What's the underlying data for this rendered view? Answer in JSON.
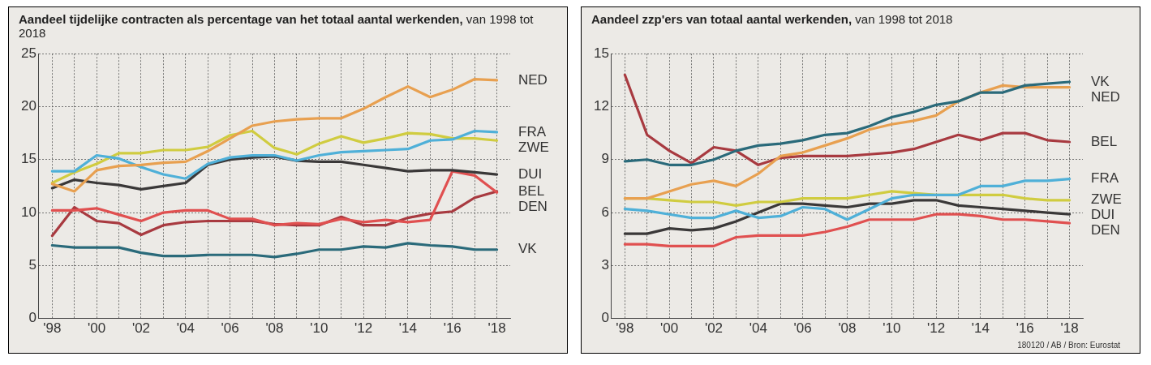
{
  "chart_data": [
    {
      "type": "line",
      "title": "Aandeel tijdelijke contracten als percentage van het totaal aantal werkenden,",
      "subtitle": "van 1998 tot 2018",
      "x": [
        1998,
        1999,
        2000,
        2001,
        2002,
        2003,
        2004,
        2005,
        2006,
        2007,
        2008,
        2009,
        2010,
        2011,
        2012,
        2013,
        2014,
        2015,
        2016,
        2017,
        2018
      ],
      "series": [
        {
          "name": "NED",
          "color": "#e8a050",
          "values": [
            12.7,
            12.0,
            14.0,
            14.4,
            14.5,
            14.7,
            14.8,
            15.8,
            17.0,
            18.2,
            18.6,
            18.8,
            18.9,
            18.9,
            19.8,
            20.9,
            21.9,
            20.9,
            21.6,
            22.6,
            22.5
          ]
        },
        {
          "name": "FRA",
          "color": "#4fb0d8",
          "values": [
            13.9,
            13.9,
            15.4,
            15.1,
            14.3,
            13.6,
            13.2,
            14.6,
            15.2,
            15.4,
            15.4,
            14.9,
            15.4,
            15.7,
            15.8,
            15.9,
            16.0,
            16.8,
            16.9,
            17.7,
            17.6
          ]
        },
        {
          "name": "ZWE",
          "color": "#d0cc40",
          "values": [
            12.8,
            13.8,
            14.6,
            15.6,
            15.6,
            15.9,
            15.9,
            16.2,
            17.3,
            17.7,
            16.1,
            15.5,
            16.5,
            17.2,
            16.6,
            17.0,
            17.5,
            17.4,
            17.0,
            17.0,
            16.8
          ]
        },
        {
          "name": "DUI",
          "color": "#3a3838",
          "values": [
            12.3,
            13.1,
            12.8,
            12.6,
            12.2,
            12.5,
            12.8,
            14.5,
            15.0,
            15.2,
            15.3,
            14.9,
            14.8,
            14.8,
            14.5,
            14.2,
            13.9,
            14.0,
            14.0,
            13.8,
            13.6
          ]
        },
        {
          "name": "DEN",
          "color": "#e05050",
          "values": [
            10.2,
            10.2,
            10.4,
            9.8,
            9.2,
            10.0,
            10.2,
            10.2,
            9.4,
            9.4,
            8.8,
            9.0,
            8.9,
            9.4,
            9.1,
            9.3,
            9.1,
            9.3,
            13.9,
            13.5,
            11.9
          ]
        },
        {
          "name": "BEL",
          "color": "#a83a40",
          "values": [
            7.8,
            10.5,
            9.2,
            9.0,
            7.9,
            8.8,
            9.1,
            9.2,
            9.2,
            9.2,
            8.9,
            8.8,
            8.8,
            9.6,
            8.8,
            8.8,
            9.5,
            9.9,
            10.1,
            11.4,
            12.0
          ]
        },
        {
          "name": "VK",
          "color": "#2a6a7a",
          "values": [
            6.9,
            6.7,
            6.7,
            6.7,
            6.2,
            5.9,
            5.9,
            6.0,
            6.0,
            6.0,
            5.8,
            6.1,
            6.5,
            6.5,
            6.8,
            6.7,
            7.1,
            6.9,
            6.8,
            6.5,
            6.5
          ]
        }
      ],
      "xlim": [
        1997.4,
        2018.6
      ],
      "xticks": [
        {
          "value": 1998,
          "label": "'98"
        },
        {
          "value": 1999,
          "label": null
        },
        {
          "value": 2000,
          "label": "'00"
        },
        {
          "value": 2001,
          "label": null
        },
        {
          "value": 2002,
          "label": "'02"
        },
        {
          "value": 2003,
          "label": null
        },
        {
          "value": 2004,
          "label": "'04"
        },
        {
          "value": 2005,
          "label": null
        },
        {
          "value": 2006,
          "label": "'06"
        },
        {
          "value": 2007,
          "label": null
        },
        {
          "value": 2008,
          "label": "'08"
        },
        {
          "value": 2009,
          "label": null
        },
        {
          "value": 2010,
          "label": "'10"
        },
        {
          "value": 2011,
          "label": null
        },
        {
          "value": 2012,
          "label": "'12"
        },
        {
          "value": 2013,
          "label": null
        },
        {
          "value": 2014,
          "label": "'14"
        },
        {
          "value": 2015,
          "label": null
        },
        {
          "value": 2016,
          "label": "'16"
        },
        {
          "value": 2017,
          "label": null
        },
        {
          "value": 2018,
          "label": "'18"
        }
      ],
      "ylim": [
        0,
        25
      ],
      "yticks": [
        0,
        5,
        10,
        15,
        20,
        25
      ],
      "grid": true,
      "legend": false,
      "marker": "none",
      "line_style": "solid"
    },
    {
      "type": "line",
      "title": "Aandeel zzp'ers van totaal aantal werkenden,",
      "subtitle": "van 1998 tot 2018",
      "x": [
        1998,
        1999,
        2000,
        2001,
        2002,
        2003,
        2004,
        2005,
        2006,
        2007,
        2008,
        2009,
        2010,
        2011,
        2012,
        2013,
        2014,
        2015,
        2016,
        2017,
        2018
      ],
      "series": [
        {
          "name": "VK",
          "color": "#2a6a7a",
          "values": [
            8.9,
            9.0,
            8.7,
            8.7,
            9.0,
            9.5,
            9.8,
            9.9,
            10.1,
            10.4,
            10.5,
            10.9,
            11.4,
            11.7,
            12.1,
            12.3,
            12.8,
            12.8,
            13.2,
            13.3,
            13.4
          ]
        },
        {
          "name": "NED",
          "color": "#e8a050",
          "values": [
            6.8,
            6.8,
            7.2,
            7.6,
            7.8,
            7.5,
            8.2,
            9.2,
            9.4,
            9.8,
            10.2,
            10.7,
            11.0,
            11.2,
            11.5,
            12.3,
            12.8,
            13.2,
            13.1,
            13.1,
            13.1
          ]
        },
        {
          "name": "BEL",
          "color": "#a83a40",
          "values": [
            13.8,
            10.4,
            9.5,
            8.8,
            9.7,
            9.5,
            8.7,
            9.1,
            9.2,
            9.2,
            9.2,
            9.3,
            9.4,
            9.6,
            10.0,
            10.4,
            10.1,
            10.5,
            10.5,
            10.1,
            10.0
          ]
        },
        {
          "name": "FRA",
          "color": "#4fb0d8",
          "values": [
            6.2,
            6.1,
            5.9,
            5.7,
            5.7,
            6.1,
            5.7,
            5.8,
            6.3,
            6.2,
            5.6,
            6.2,
            6.8,
            7.0,
            7.0,
            7.0,
            7.5,
            7.5,
            7.8,
            7.8,
            7.9
          ]
        },
        {
          "name": "ZWE",
          "color": "#d0cc40",
          "values": [
            6.8,
            6.8,
            6.7,
            6.6,
            6.6,
            6.4,
            6.6,
            6.6,
            6.8,
            6.8,
            6.8,
            7.0,
            7.2,
            7.1,
            7.0,
            7.0,
            7.0,
            7.0,
            6.8,
            6.7,
            6.7
          ]
        },
        {
          "name": "DUI",
          "color": "#3a3838",
          "values": [
            4.8,
            4.8,
            5.1,
            5.0,
            5.1,
            5.5,
            6.0,
            6.5,
            6.5,
            6.4,
            6.3,
            6.5,
            6.5,
            6.7,
            6.7,
            6.4,
            6.3,
            6.2,
            6.1,
            6.0,
            5.9
          ]
        },
        {
          "name": "DEN",
          "color": "#e05050",
          "values": [
            4.2,
            4.2,
            4.1,
            4.1,
            4.1,
            4.6,
            4.7,
            4.7,
            4.7,
            4.9,
            5.2,
            5.6,
            5.6,
            5.6,
            5.9,
            5.9,
            5.8,
            5.6,
            5.6,
            5.5,
            5.4
          ]
        }
      ],
      "xlim": [
        1997.4,
        2018.6
      ],
      "xticks": [
        {
          "value": 1998,
          "label": "'98"
        },
        {
          "value": 1999,
          "label": null
        },
        {
          "value": 2000,
          "label": "'00"
        },
        {
          "value": 2001,
          "label": null
        },
        {
          "value": 2002,
          "label": "'02"
        },
        {
          "value": 2003,
          "label": null
        },
        {
          "value": 2004,
          "label": "'04"
        },
        {
          "value": 2005,
          "label": null
        },
        {
          "value": 2006,
          "label": "'06"
        },
        {
          "value": 2007,
          "label": null
        },
        {
          "value": 2008,
          "label": "'08"
        },
        {
          "value": 2009,
          "label": null
        },
        {
          "value": 2010,
          "label": "'10"
        },
        {
          "value": 2011,
          "label": null
        },
        {
          "value": 2012,
          "label": "'12"
        },
        {
          "value": 2013,
          "label": null
        },
        {
          "value": 2014,
          "label": "'14"
        },
        {
          "value": 2015,
          "label": null
        },
        {
          "value": 2016,
          "label": "'16"
        },
        {
          "value": 2017,
          "label": null
        },
        {
          "value": 2018,
          "label": "'18"
        }
      ],
      "ylim": [
        0,
        15
      ],
      "yticks": [
        0,
        3,
        6,
        9,
        12,
        15
      ],
      "grid": true,
      "legend": false,
      "marker": "none",
      "line_style": "solid",
      "annotations": [
        "180120 / AB / Bron: Eurostat"
      ]
    }
  ]
}
